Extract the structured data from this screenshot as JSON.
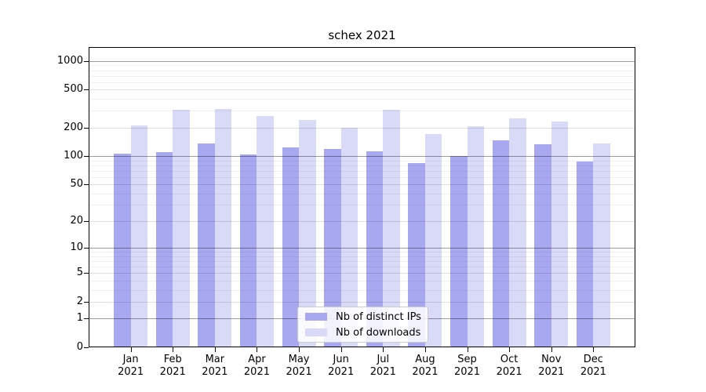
{
  "chart_data": {
    "type": "bar",
    "title": "schex 2021",
    "categories": [
      "Jan",
      "Feb",
      "Mar",
      "Apr",
      "May",
      "Jun",
      "Jul",
      "Aug",
      "Sep",
      "Oct",
      "Nov",
      "Dec"
    ],
    "year_label": "2021",
    "series": [
      {
        "name": "Nb of distinct IPs",
        "color": "#a8a8f0",
        "values": [
          106,
          111,
          137,
          103,
          123,
          119,
          113,
          85,
          100,
          146,
          134,
          88
        ]
      },
      {
        "name": "Nb of downloads",
        "color": "#d9d9f8",
        "values": [
          209,
          305,
          311,
          262,
          242,
          200,
          307,
          170,
          208,
          248,
          233,
          135
        ]
      }
    ],
    "xlabel": "",
    "ylabel": "",
    "y_scale": "log1p",
    "ylim": [
      0,
      1400
    ],
    "y_ticks": [
      0,
      1,
      2,
      5,
      10,
      20,
      50,
      100,
      200,
      500,
      1000
    ],
    "y_minor_ticks": [
      3,
      4,
      6,
      7,
      8,
      9,
      30,
      40,
      60,
      70,
      80,
      90,
      300,
      400,
      600,
      700,
      800,
      900
    ],
    "grid": true,
    "grid_over_bars": true,
    "legend_position": "lower center",
    "colors": {
      "grid_power10": "rgba(0,0,0,0.38)",
      "grid_major": "rgba(0,0,0,0.12)",
      "grid_minor": "rgba(0,0,0,0.06)",
      "spine": "#000000",
      "background": "#ffffff"
    }
  }
}
